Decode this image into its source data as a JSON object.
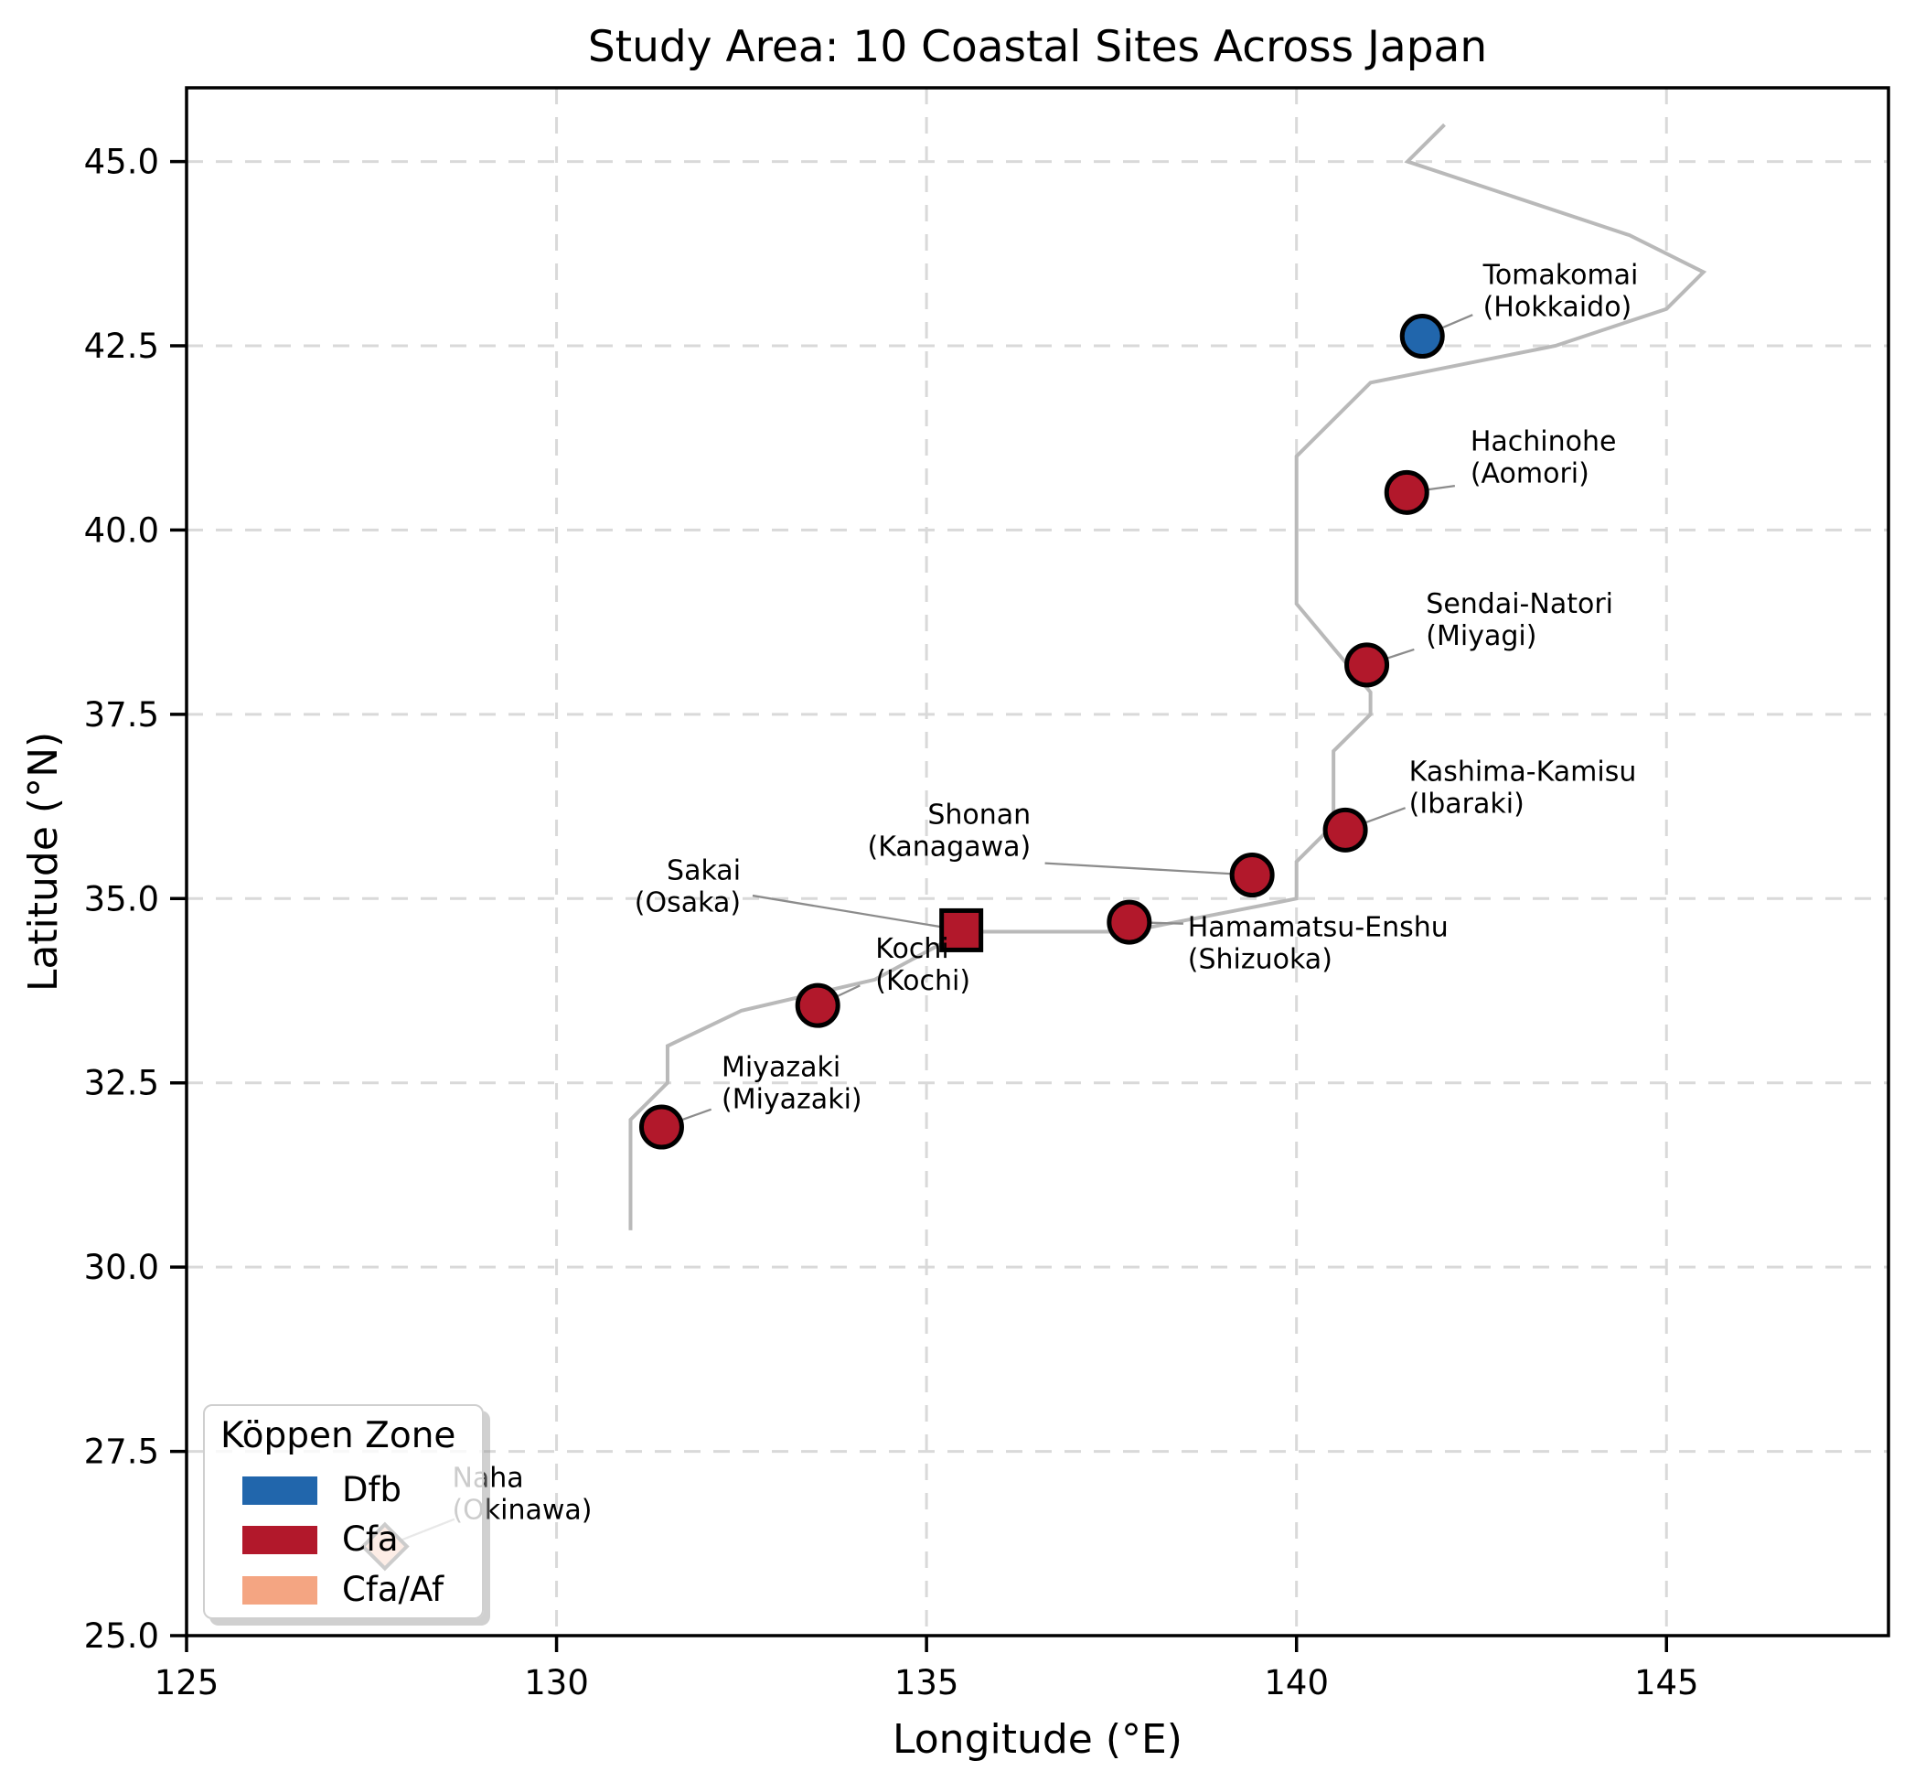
{
  "title": "Study Area: 10 Coastal Sites Across Japan",
  "axes": {
    "xlabel": "Longitude (°E)",
    "ylabel": "Latitude (°N)",
    "xlim": [
      125,
      148
    ],
    "ylim": [
      25,
      46
    ],
    "xticks": [
      {
        "value": 125,
        "label": "125"
      },
      {
        "value": 130,
        "label": "130"
      },
      {
        "value": 135,
        "label": "135"
      },
      {
        "value": 140,
        "label": "140"
      },
      {
        "value": 145,
        "label": "145"
      }
    ],
    "yticks": [
      {
        "value": 25.0,
        "label": "25.0"
      },
      {
        "value": 27.5,
        "label": "27.5"
      },
      {
        "value": 30.0,
        "label": "30.0"
      },
      {
        "value": 32.5,
        "label": "32.5"
      },
      {
        "value": 35.0,
        "label": "35.0"
      },
      {
        "value": 37.5,
        "label": "37.5"
      },
      {
        "value": 40.0,
        "label": "40.0"
      },
      {
        "value": 42.5,
        "label": "42.5"
      },
      {
        "value": 45.0,
        "label": "45.0"
      }
    ],
    "grid": true
  },
  "legend": {
    "title": "Köppen Zone",
    "position": "lower left",
    "entries": [
      {
        "label": "Dfb",
        "color": "#2166ac"
      },
      {
        "label": "Cfa",
        "color": "#b2182b"
      },
      {
        "label": "Cfa/Af",
        "color": "#f4a582"
      }
    ]
  },
  "colors": {
    "zones": {
      "Dfb": "#2166ac",
      "Cfa": "#b2182b",
      "Cfa/Af": "#f4a582"
    },
    "marker_edge": "#000000",
    "coastline": "#b9b9b9",
    "leader": "#8c8c8c",
    "grid": "#d9d9d9",
    "text": "#000000"
  },
  "chart_data": {
    "type": "scatter",
    "title": "Study Area: 10 Coastal Sites Across Japan",
    "xlabel": "Longitude (°E)",
    "ylabel": "Latitude (°N)",
    "xlim": [
      125,
      148
    ],
    "ylim": [
      25,
      46
    ],
    "sites": [
      {
        "name": "Tomakomai",
        "prefecture": "Hokkaido",
        "lon": 141.7,
        "lat": 42.63,
        "zone": "Dfb",
        "marker": "circle",
        "label": {
          "x": 142.52,
          "y": 43.25,
          "align": "left"
        },
        "leader_end": [
          142.38,
          42.92
        ]
      },
      {
        "name": "Hachinohe",
        "prefecture": "Aomori",
        "lon": 141.49,
        "lat": 40.51,
        "zone": "Cfa",
        "marker": "circle",
        "label": {
          "x": 142.35,
          "y": 40.99,
          "align": "left"
        },
        "leader_end": [
          142.14,
          40.6
        ]
      },
      {
        "name": "Sendai-Natori",
        "prefecture": "Miyagi",
        "lon": 140.95,
        "lat": 38.17,
        "zone": "Cfa",
        "marker": "circle",
        "label": {
          "x": 141.75,
          "y": 38.79,
          "align": "left"
        },
        "leader_end": [
          141.59,
          38.38
        ]
      },
      {
        "name": "Kashima-Kamisu",
        "prefecture": "Ibaraki",
        "lon": 140.66,
        "lat": 35.93,
        "zone": "Cfa",
        "marker": "circle",
        "label": {
          "x": 141.52,
          "y": 36.51,
          "align": "left"
        },
        "leader_end": [
          141.47,
          36.23
        ]
      },
      {
        "name": "Shonan",
        "prefecture": "Kanagawa",
        "lon": 139.4,
        "lat": 35.32,
        "zone": "Cfa",
        "marker": "circle",
        "label": {
          "x": 136.41,
          "y": 35.93,
          "align": "right"
        },
        "leader_end": [
          136.6,
          35.48
        ]
      },
      {
        "name": "Hamamatsu-Enshu",
        "prefecture": "Shizuoka",
        "lon": 137.74,
        "lat": 34.68,
        "zone": "Cfa",
        "marker": "circle",
        "label": {
          "x": 138.53,
          "y": 34.4,
          "align": "left"
        },
        "leader_end": [
          138.47,
          34.66
        ]
      },
      {
        "name": "Sakai",
        "prefecture": "Osaka",
        "lon": 135.47,
        "lat": 34.57,
        "zone": "Cfa",
        "marker": "square",
        "label": {
          "x": 132.49,
          "y": 35.17,
          "align": "right"
        },
        "leader_end": [
          132.65,
          35.04
        ]
      },
      {
        "name": "Kochi",
        "prefecture": "Kochi",
        "lon": 133.53,
        "lat": 33.55,
        "zone": "Cfa",
        "marker": "circle",
        "label": {
          "x": 134.31,
          "y": 34.11,
          "align": "left"
        },
        "leader_end": [
          134.1,
          33.82
        ]
      },
      {
        "name": "Miyazaki",
        "prefecture": "Miyazaki",
        "lon": 131.42,
        "lat": 31.9,
        "zone": "Cfa",
        "marker": "circle",
        "label": {
          "x": 132.23,
          "y": 32.5,
          "align": "left"
        },
        "leader_end": [
          132.09,
          32.14
        ]
      },
      {
        "name": "Naha",
        "prefecture": "Okinawa",
        "lon": 127.68,
        "lat": 26.21,
        "zone": "Cfa/Af",
        "marker": "diamond",
        "label": {
          "x": 128.59,
          "y": 26.93,
          "align": "left"
        },
        "leader_end": [
          128.62,
          26.58
        ],
        "occluded_by_legend": true
      }
    ],
    "coastline": [
      [
        142.0,
        45.5
      ],
      [
        141.5,
        45.0
      ],
      [
        144.5,
        44.0
      ],
      [
        145.5,
        43.5
      ],
      [
        145.0,
        43.0
      ],
      [
        143.5,
        42.5
      ],
      [
        141.0,
        42.0
      ],
      [
        140.0,
        41.0
      ],
      [
        140.0,
        39.0
      ],
      [
        141.0,
        37.8
      ],
      [
        141.0,
        37.5
      ],
      [
        140.5,
        37.0
      ],
      [
        140.5,
        36.0
      ],
      [
        140.0,
        35.5
      ],
      [
        140.0,
        35.0
      ],
      [
        139.5,
        34.9
      ],
      [
        137.7,
        34.55
      ],
      [
        135.5,
        34.55
      ],
      [
        134.3,
        33.9
      ],
      [
        132.5,
        33.48
      ],
      [
        131.5,
        33.0
      ],
      [
        131.5,
        32.5
      ],
      [
        131.0,
        32.0
      ],
      [
        131.0,
        30.5
      ]
    ]
  }
}
